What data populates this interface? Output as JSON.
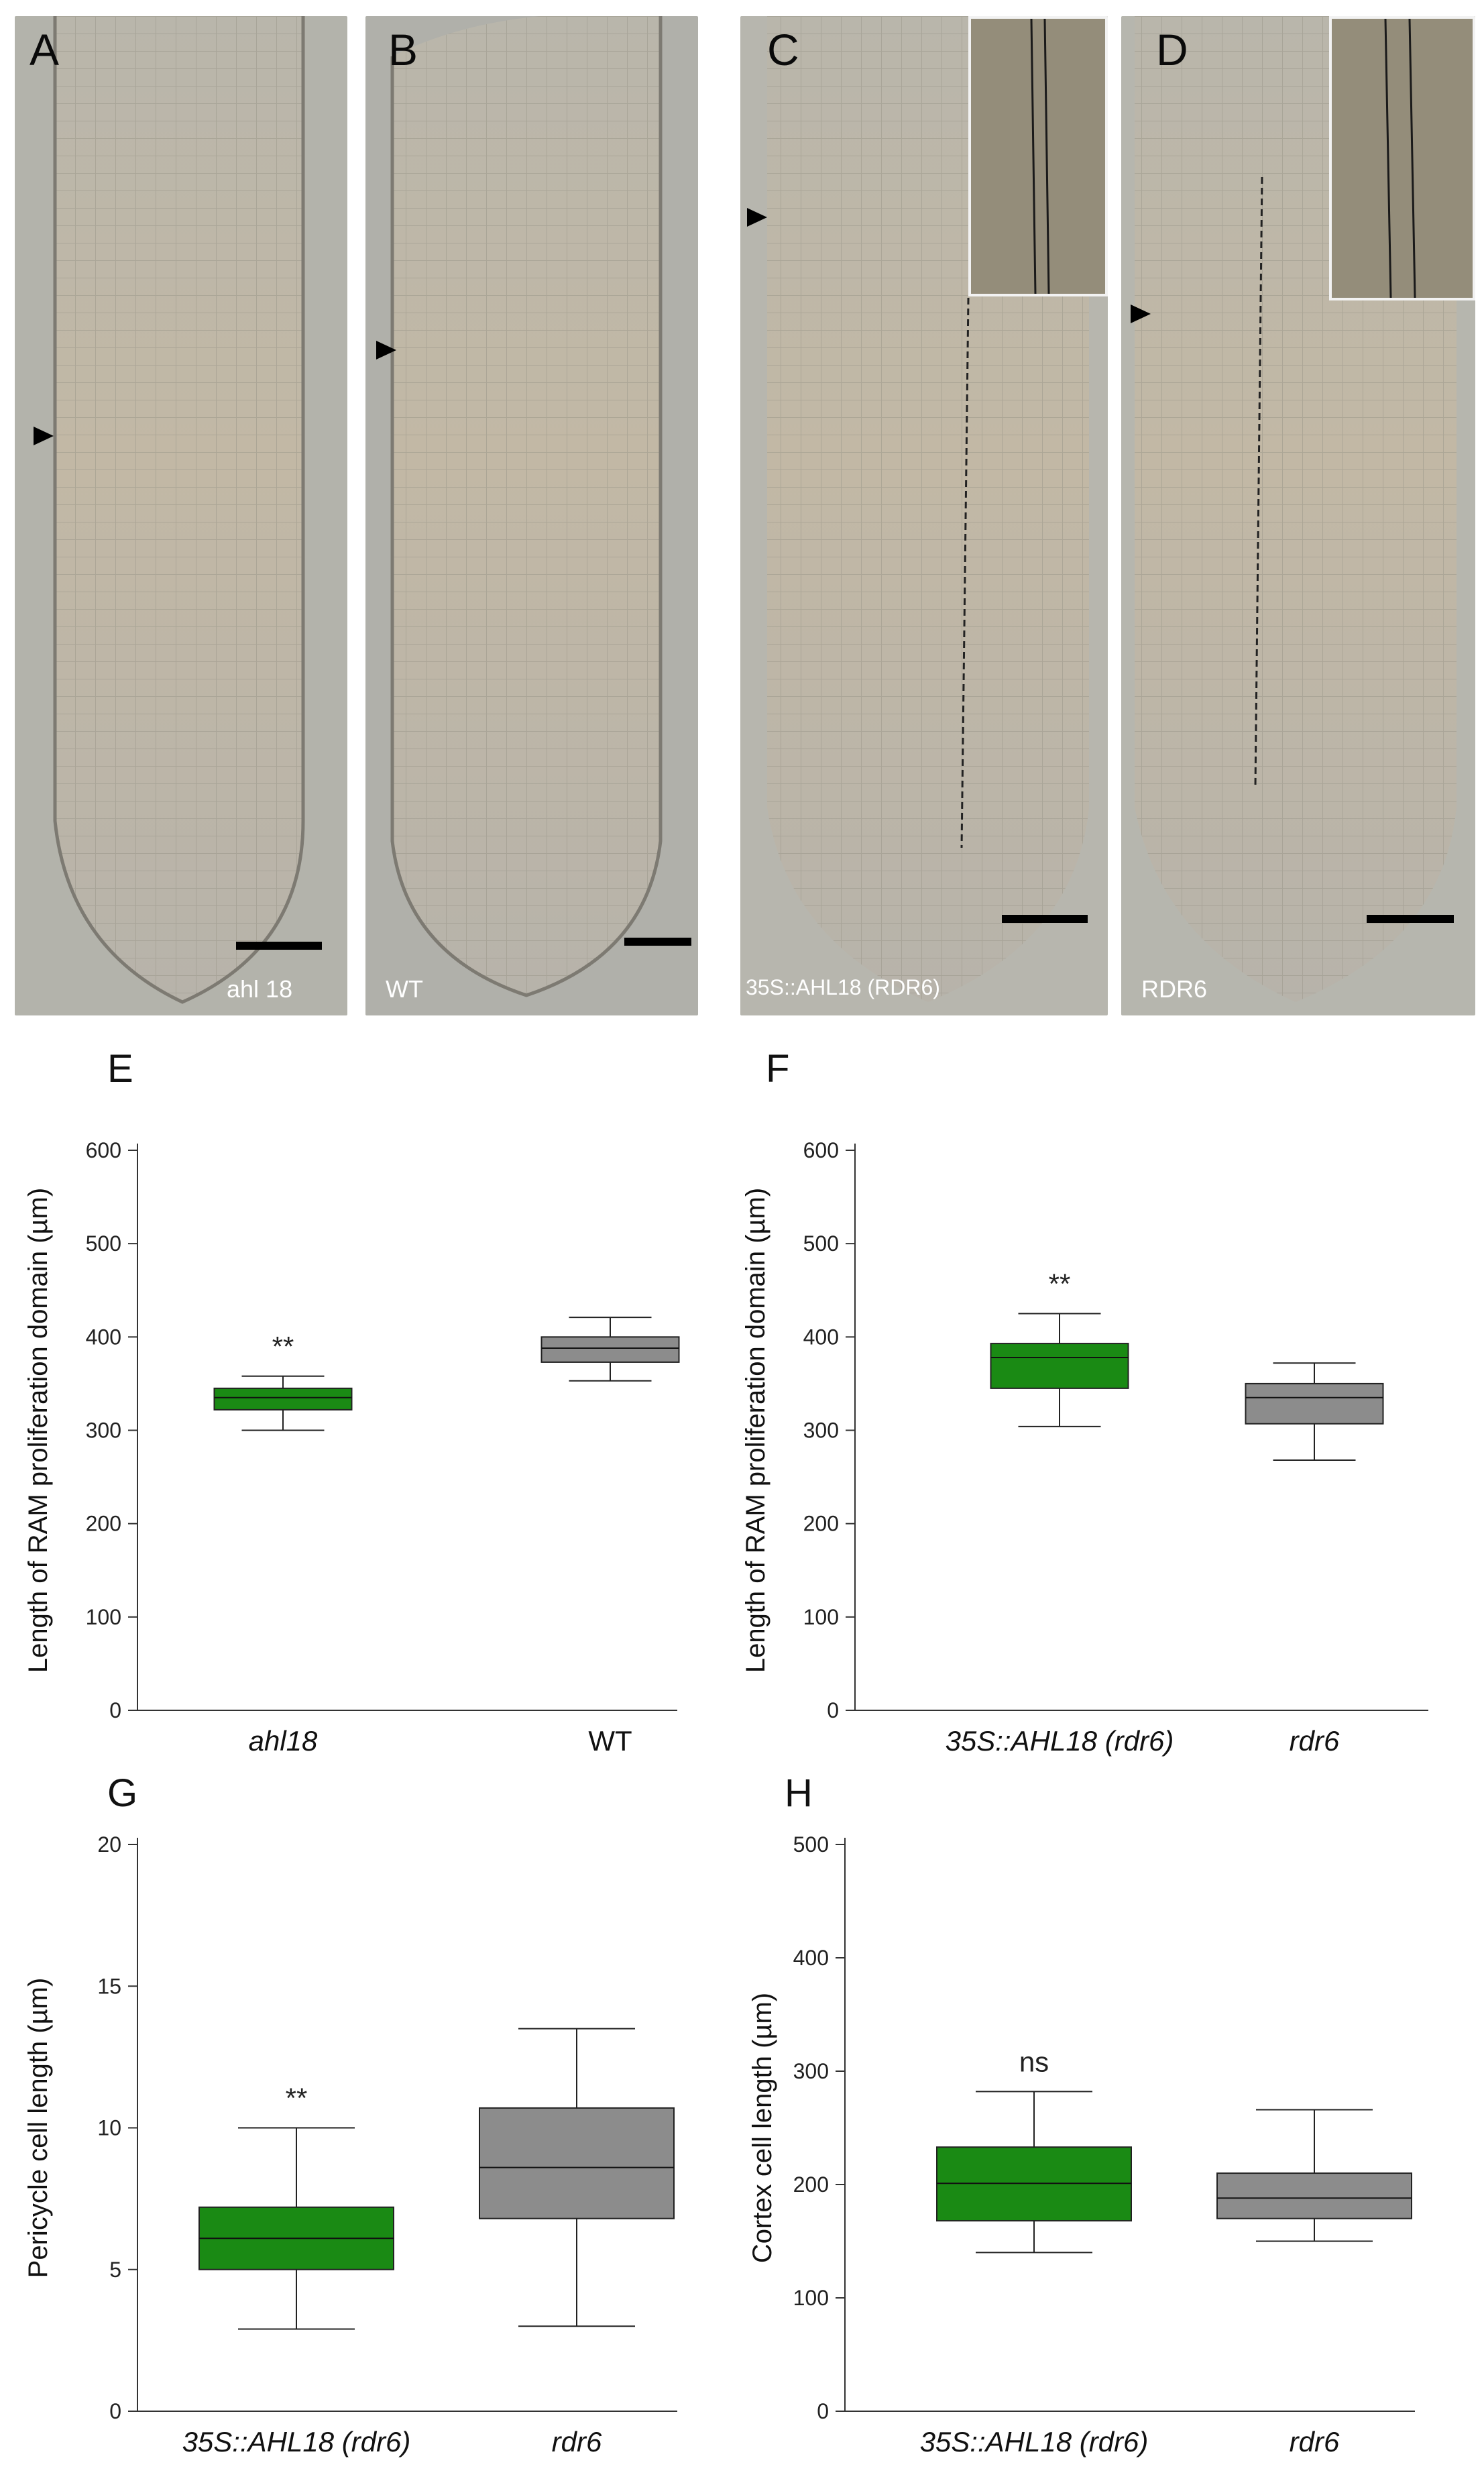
{
  "micrographs": [
    {
      "letter": "A",
      "caption": "ahl 18"
    },
    {
      "letter": "B",
      "caption": "WT"
    },
    {
      "letter": "C",
      "caption": "35S::AHL18  (RDR6)"
    },
    {
      "letter": "D",
      "caption": "RDR6"
    }
  ],
  "chart_data": [
    {
      "panel": "E",
      "type": "box",
      "ylabel": "Length of RAM proliferation domain (µm)",
      "ylim": [
        0,
        600
      ],
      "yticks": [
        "0",
        "100",
        "200",
        "300",
        "400",
        "500",
        "600"
      ],
      "categories": [
        "ahl18",
        "WT"
      ],
      "boxes": [
        {
          "min": 300,
          "q1": 322,
          "median": 335,
          "q3": 345,
          "max": 358,
          "color": "#1a8a14",
          "annotation": "**"
        },
        {
          "min": 353,
          "q1": 373,
          "median": 388,
          "q3": 400,
          "max": 421,
          "color": "#8c8c8c",
          "annotation": ""
        }
      ]
    },
    {
      "panel": "F",
      "type": "box",
      "ylabel": "Length of RAM proliferation domain (µm)",
      "ylim": [
        0,
        600
      ],
      "yticks": [
        "0",
        "100",
        "200",
        "300",
        "400",
        "500",
        "600"
      ],
      "categories": [
        "35S::AHL18 (rdr6)",
        "rdr6"
      ],
      "boxes": [
        {
          "min": 304,
          "q1": 345,
          "median": 378,
          "q3": 393,
          "max": 425,
          "color": "#1a8a14",
          "annotation": "**"
        },
        {
          "min": 268,
          "q1": 307,
          "median": 335,
          "q3": 350,
          "max": 372,
          "color": "#8c8c8c",
          "annotation": ""
        }
      ]
    },
    {
      "panel": "G",
      "type": "box",
      "ylabel": "Pericycle cell length (µm)",
      "ylim": [
        0,
        20
      ],
      "yticks": [
        "0",
        "5",
        "10",
        "15",
        "20"
      ],
      "categories": [
        "35S::AHL18 (rdr6)",
        "rdr6"
      ],
      "boxes": [
        {
          "min": 2.9,
          "q1": 5.0,
          "median": 6.1,
          "q3": 7.2,
          "max": 10.0,
          "color": "#1a8a14",
          "annotation": "**"
        },
        {
          "min": 3.0,
          "q1": 6.8,
          "median": 8.6,
          "q3": 10.7,
          "max": 13.5,
          "color": "#8c8c8c",
          "annotation": ""
        }
      ]
    },
    {
      "panel": "H",
      "type": "box",
      "ylabel": "Cortex cell length (µm)",
      "ylim": [
        0,
        500
      ],
      "yticks": [
        "0",
        "100",
        "200",
        "300",
        "400",
        "500"
      ],
      "categories": [
        "35S::AHL18 (rdr6)",
        "rdr6"
      ],
      "boxes": [
        {
          "min": 140,
          "q1": 168,
          "median": 201,
          "q3": 233,
          "max": 282,
          "color": "#1a8a14",
          "annotation": "ns"
        },
        {
          "min": 150,
          "q1": 170,
          "median": 188,
          "q3": 210,
          "max": 266,
          "color": "#8c8c8c",
          "annotation": ""
        }
      ]
    }
  ]
}
